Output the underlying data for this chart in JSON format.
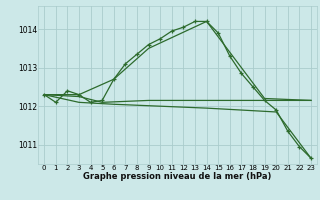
{
  "background_color": "#cce8e8",
  "grid_color": "#aacccc",
  "line_color": "#2d6b2d",
  "xlabel": "Graphe pression niveau de la mer (hPa)",
  "xlim": [
    -0.5,
    23.5
  ],
  "ylim": [
    1010.5,
    1014.6
  ],
  "yticks": [
    1011,
    1012,
    1013,
    1014
  ],
  "xticks": [
    0,
    1,
    2,
    3,
    4,
    5,
    6,
    7,
    8,
    9,
    10,
    11,
    12,
    13,
    14,
    15,
    16,
    17,
    18,
    19,
    20,
    21,
    22,
    23
  ],
  "series": [
    {
      "x": [
        0,
        1,
        2,
        3,
        4,
        5,
        6,
        7,
        8,
        9,
        10,
        11,
        12,
        13,
        14,
        15,
        16,
        17,
        18,
        19,
        20,
        21,
        22,
        23
      ],
      "y": [
        1012.3,
        1012.1,
        1012.4,
        1012.3,
        1012.1,
        1012.15,
        1012.7,
        1013.1,
        1013.35,
        1013.6,
        1013.75,
        1013.95,
        1014.05,
        1014.2,
        1014.2,
        1013.9,
        1013.3,
        1012.85,
        1012.5,
        1012.15,
        1011.9,
        1011.35,
        1010.95,
        1010.65
      ],
      "with_marker": true
    },
    {
      "x": [
        0,
        3,
        6,
        9,
        14,
        19,
        23
      ],
      "y": [
        1012.3,
        1012.3,
        1012.7,
        1013.5,
        1014.2,
        1012.2,
        1012.15
      ],
      "with_marker": false
    },
    {
      "x": [
        0,
        3,
        5,
        9,
        14,
        19,
        23
      ],
      "y": [
        1012.3,
        1012.25,
        1012.1,
        1012.15,
        1012.15,
        1012.15,
        1012.15
      ],
      "with_marker": false
    },
    {
      "x": [
        0,
        3,
        6,
        10,
        14,
        20,
        23
      ],
      "y": [
        1012.3,
        1012.1,
        1012.05,
        1012.0,
        1011.95,
        1011.85,
        1010.65
      ],
      "with_marker": false
    }
  ]
}
